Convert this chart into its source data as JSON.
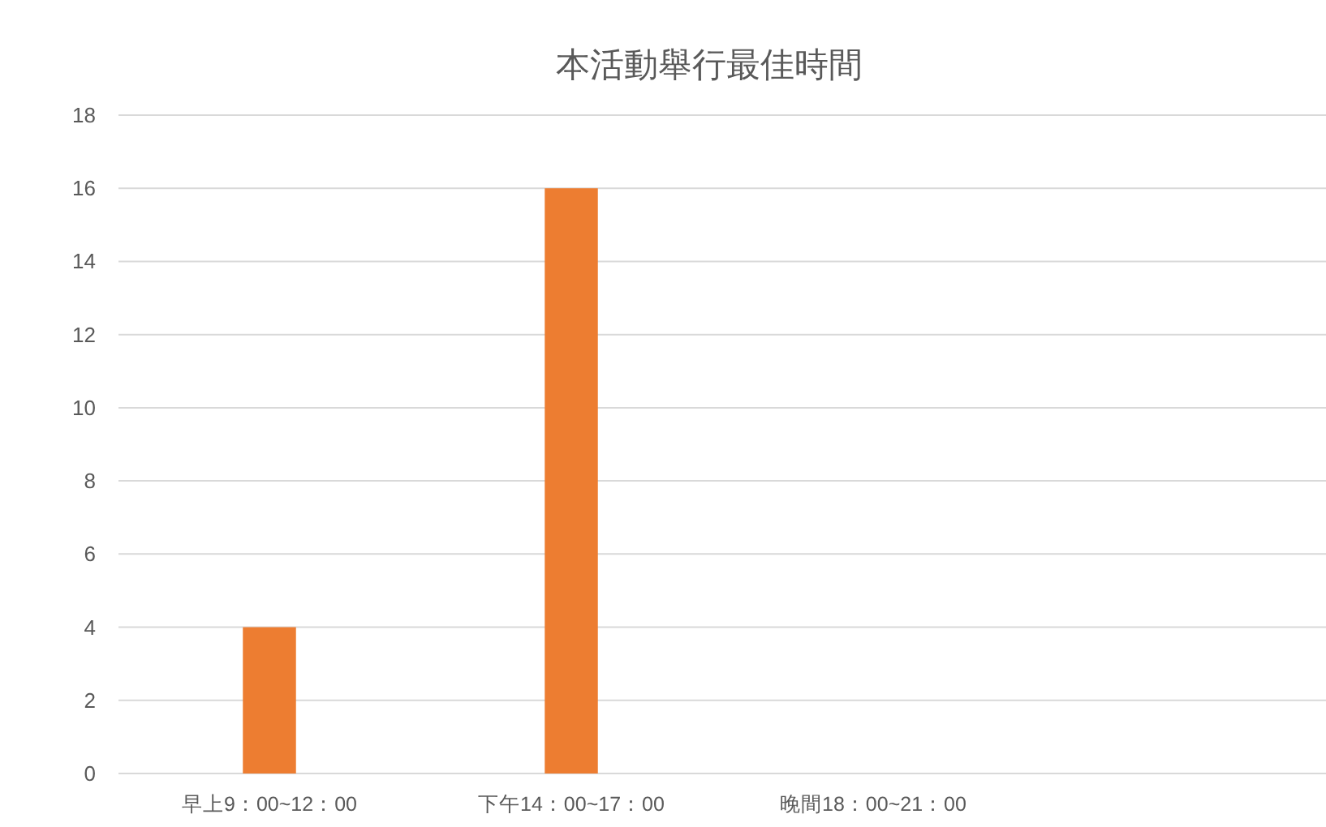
{
  "chart_data": {
    "type": "bar",
    "title": "本活動舉行最佳時間",
    "categories": [
      "早上9：00~12：00",
      "下午14：00~17：00",
      "晚間18：00~21：00",
      null
    ],
    "values": [
      4,
      16,
      0,
      null
    ],
    "color": "#ed7d31",
    "ylim": [
      0,
      18
    ],
    "yticks": [
      0,
      2,
      4,
      6,
      8,
      10,
      12,
      14,
      16,
      18
    ],
    "grid": "y"
  }
}
